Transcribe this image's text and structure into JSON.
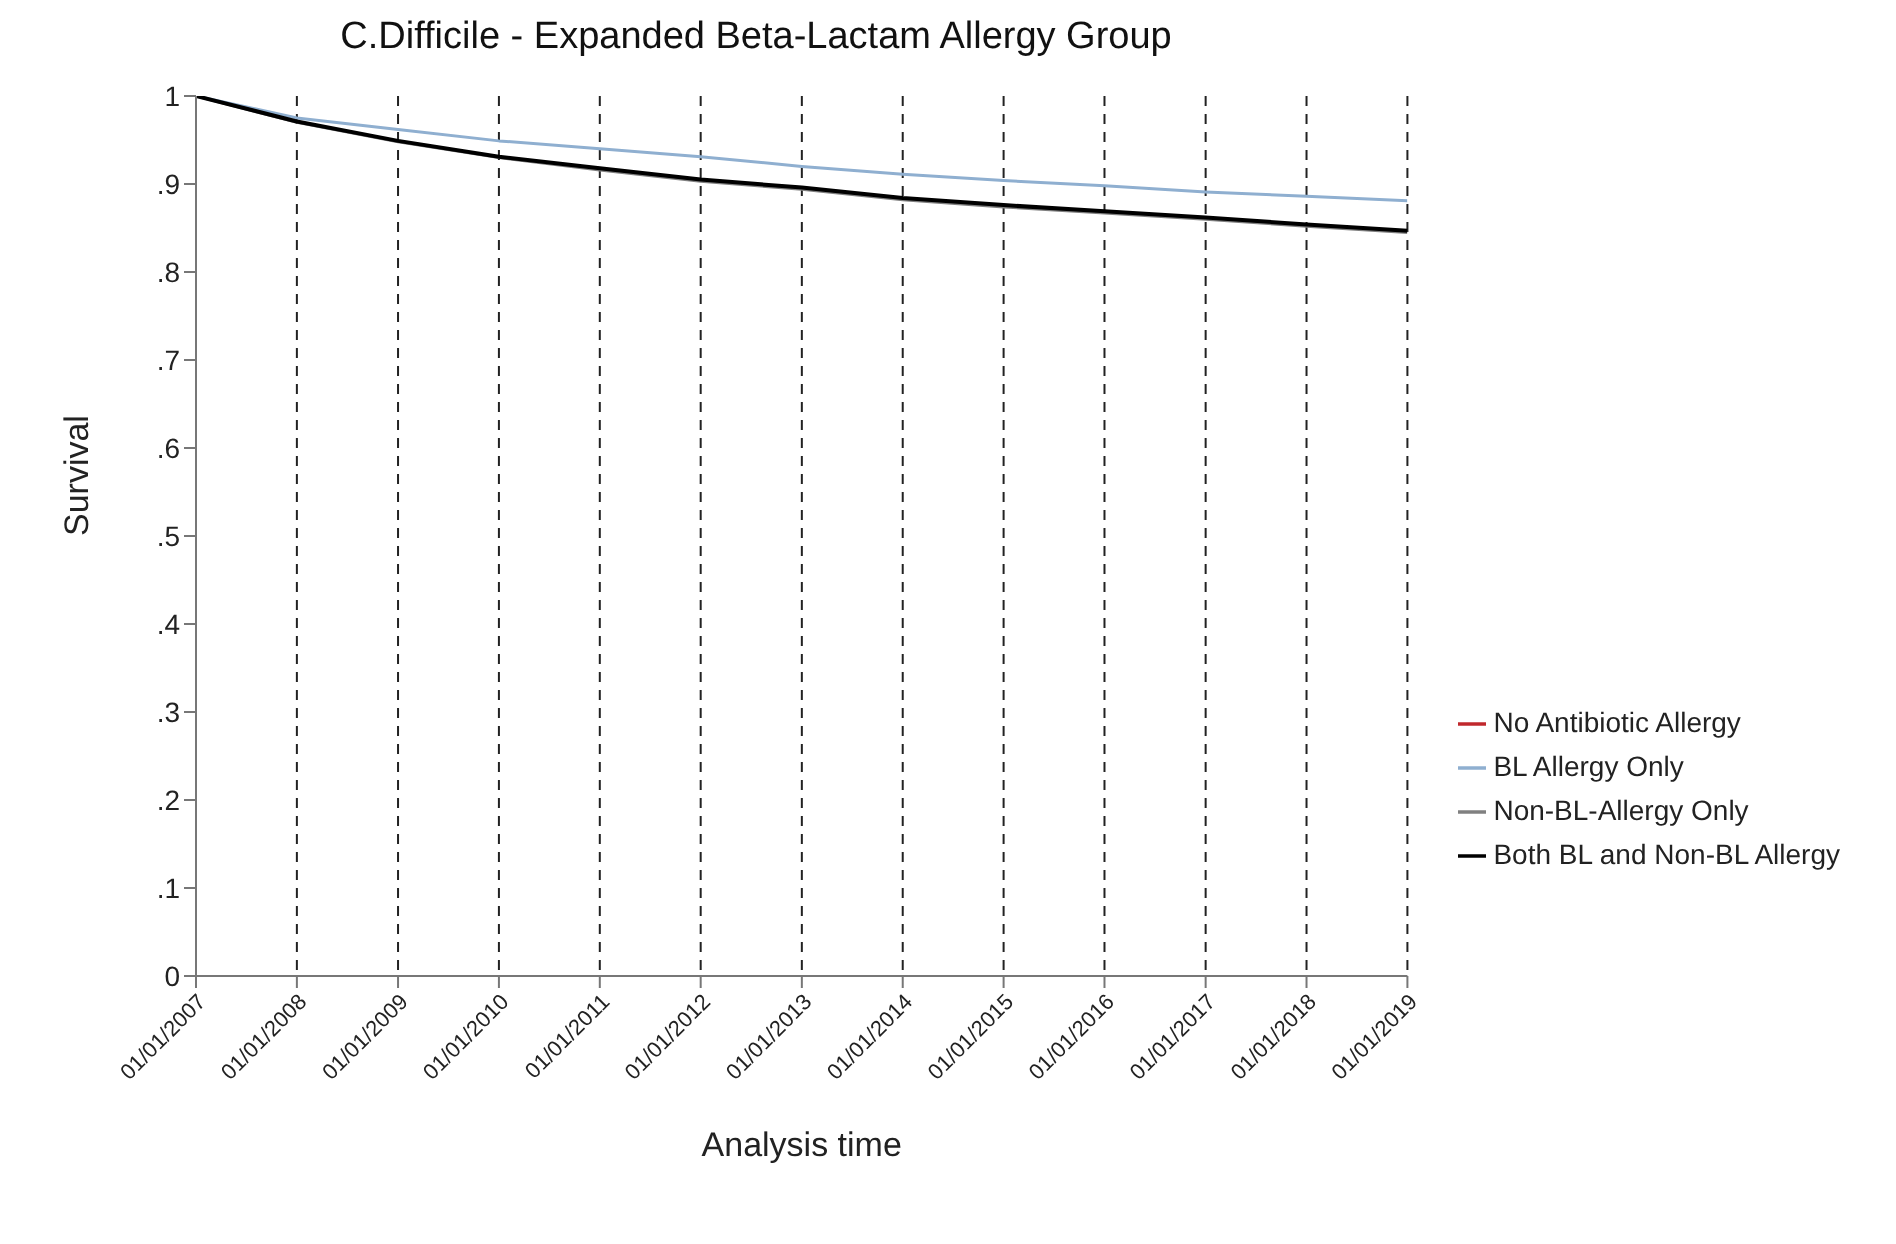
{
  "chart_data": {
    "type": "line",
    "title": "C.Difficile - Expanded Beta-Lactam Allergy Group",
    "xlabel": "Analysis time",
    "ylabel": "Survival",
    "x": [
      "2007-01-01",
      "2008-01-01",
      "2009-01-01",
      "2010-01-01",
      "2011-01-01",
      "2012-01-01",
      "2013-01-01",
      "2014-01-01",
      "2015-01-01",
      "2016-01-01",
      "2017-01-01",
      "2018-01-01",
      "2019-01-01"
    ],
    "series": [
      {
        "name": "No Antibiotic Allergy",
        "color": "#c0282d",
        "values": [
          null,
          null,
          null,
          null,
          null,
          null,
          null,
          null,
          null,
          null,
          null,
          null,
          null
        ]
      },
      {
        "name": "BL Allergy Only",
        "color": "#8fafd0",
        "values": [
          1,
          0.975,
          0.962,
          0.949,
          0.94,
          0.931,
          0.92,
          0.911,
          0.904,
          0.898,
          0.891,
          0.886,
          0.881
        ]
      },
      {
        "name": "Non-BL-Allergy Only",
        "color": "#808080",
        "values": [
          1,
          0.97,
          0.948,
          0.93,
          0.916,
          0.903,
          0.894,
          0.882,
          0.874,
          0.867,
          0.86,
          0.852,
          0.845
        ]
      },
      {
        "name": "Both BL and Non-BL Allergy",
        "color": "#000000",
        "values": [
          1,
          0.971,
          0.949,
          0.931,
          0.918,
          0.905,
          0.896,
          0.884,
          0.876,
          0.869,
          0.862,
          0.854,
          0.847
        ]
      }
    ],
    "ylim": [
      0,
      1
    ],
    "yticks": [
      0,
      {
        "value": 0.1,
        "label": ".1"
      },
      {
        "value": 0.2,
        "label": ".2"
      },
      {
        "value": 0.3,
        "label": ".3"
      },
      {
        "value": 0.4,
        "label": ".4"
      },
      {
        "value": 0.5,
        "label": ".5"
      },
      {
        "value": 0.6,
        "label": ".6"
      },
      {
        "value": 0.7,
        "label": ".7"
      },
      {
        "value": 0.8,
        "label": ".8"
      },
      {
        "value": 0.9,
        "label": ".9"
      },
      1
    ],
    "xlim": [
      "2007-01-01",
      "2019-01-01"
    ],
    "xticks": [
      {
        "value": "2007-01-01",
        "label": "01/01/2007"
      },
      {
        "value": "2008-01-01",
        "label": "01/01/2008"
      },
      {
        "value": "2009-01-01",
        "label": "01/01/2009"
      },
      {
        "value": "2010-01-01",
        "label": "01/01/2010"
      },
      {
        "value": "2011-01-01",
        "label": "01/01/2011"
      },
      {
        "value": "2012-01-01",
        "label": "01/01/2012"
      },
      {
        "value": "2013-01-01",
        "label": "01/01/2013"
      },
      {
        "value": "2014-01-01",
        "label": "01/01/2014"
      },
      {
        "value": "2015-01-01",
        "label": "01/01/2015"
      },
      {
        "value": "2016-01-01",
        "label": "01/01/2016"
      },
      {
        "value": "2017-01-01",
        "label": "01/01/2017"
      },
      {
        "value": "2018-01-01",
        "label": "01/01/2018"
      },
      {
        "value": "2019-01-01",
        "label": "01/01/2019"
      }
    ],
    "grid": "x",
    "legend": "right",
    "marker": "none",
    "line_style": "solid"
  }
}
